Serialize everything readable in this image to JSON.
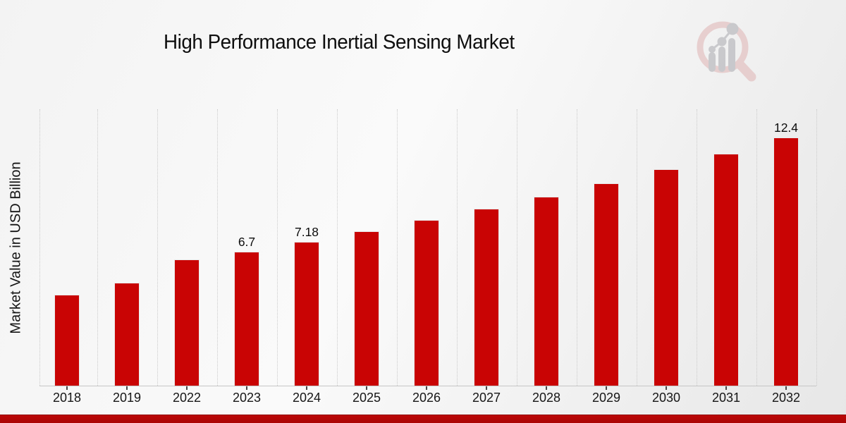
{
  "header": {
    "title": "High Performance Inertial Sensing Market"
  },
  "chart_data": {
    "type": "bar",
    "title": "High Performance Inertial Sensing Market",
    "xlabel": "",
    "ylabel": "Market Value in USD Billion",
    "categories": [
      "2018",
      "2019",
      "2022",
      "2023",
      "2024",
      "2025",
      "2026",
      "2027",
      "2028",
      "2029",
      "2030",
      "2031",
      "2032"
    ],
    "values": [
      4.54,
      5.14,
      6.31,
      6.7,
      7.18,
      7.71,
      8.28,
      8.84,
      9.44,
      10.11,
      10.81,
      11.59,
      12.4
    ],
    "data_labels": {
      "2023": "6.7",
      "2024": "7.18",
      "2032": "12.4"
    },
    "bar_color": "#c90404",
    "ylim": [
      0,
      13.8
    ],
    "grid": "vertical-dotted-gridlines",
    "legend": "none"
  },
  "branding": {
    "logo": "magnifier-bar-chart-watermark-logo",
    "footer_band_color": "#b20606"
  }
}
